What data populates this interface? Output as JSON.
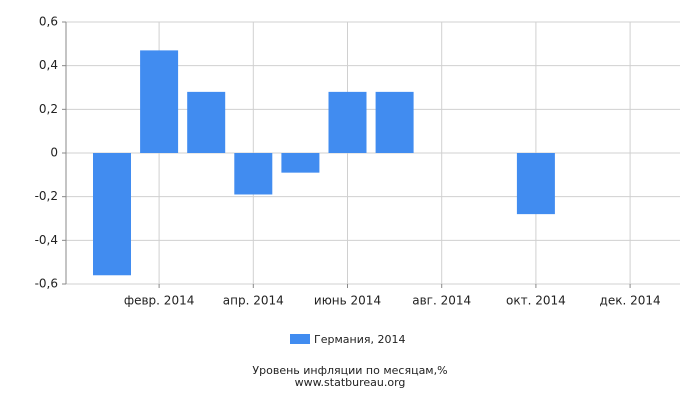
{
  "chart_data": {
    "type": "bar",
    "title": "Уровень инфляции по месяцам,%",
    "subtitle": "www.statbureau.org",
    "categories": [
      null,
      "февр. 2014",
      null,
      "апр. 2014",
      null,
      "июнь 2014",
      null,
      "авг. 2014",
      null,
      "окт. 2014",
      null,
      "дек. 2014"
    ],
    "series": [
      {
        "name": "Германия, 2014",
        "color": "#418cf0",
        "values": [
          -0.56,
          0.47,
          0.28,
          -0.19,
          -0.09,
          0.28,
          0.28,
          0,
          0,
          -0.28,
          0,
          0
        ]
      }
    ],
    "ylim": [
      -0.6,
      0.6
    ],
    "yticks": [
      {
        "value": -0.6,
        "label": "-0,6"
      },
      {
        "value": -0.4,
        "label": "-0,4"
      },
      {
        "value": -0.2,
        "label": "-0,2"
      },
      0,
      {
        "value": 0.2,
        "label": "0,2"
      },
      {
        "value": 0.4,
        "label": "0,4"
      },
      {
        "value": 0.6,
        "label": "0,6"
      }
    ],
    "grid": true
  }
}
